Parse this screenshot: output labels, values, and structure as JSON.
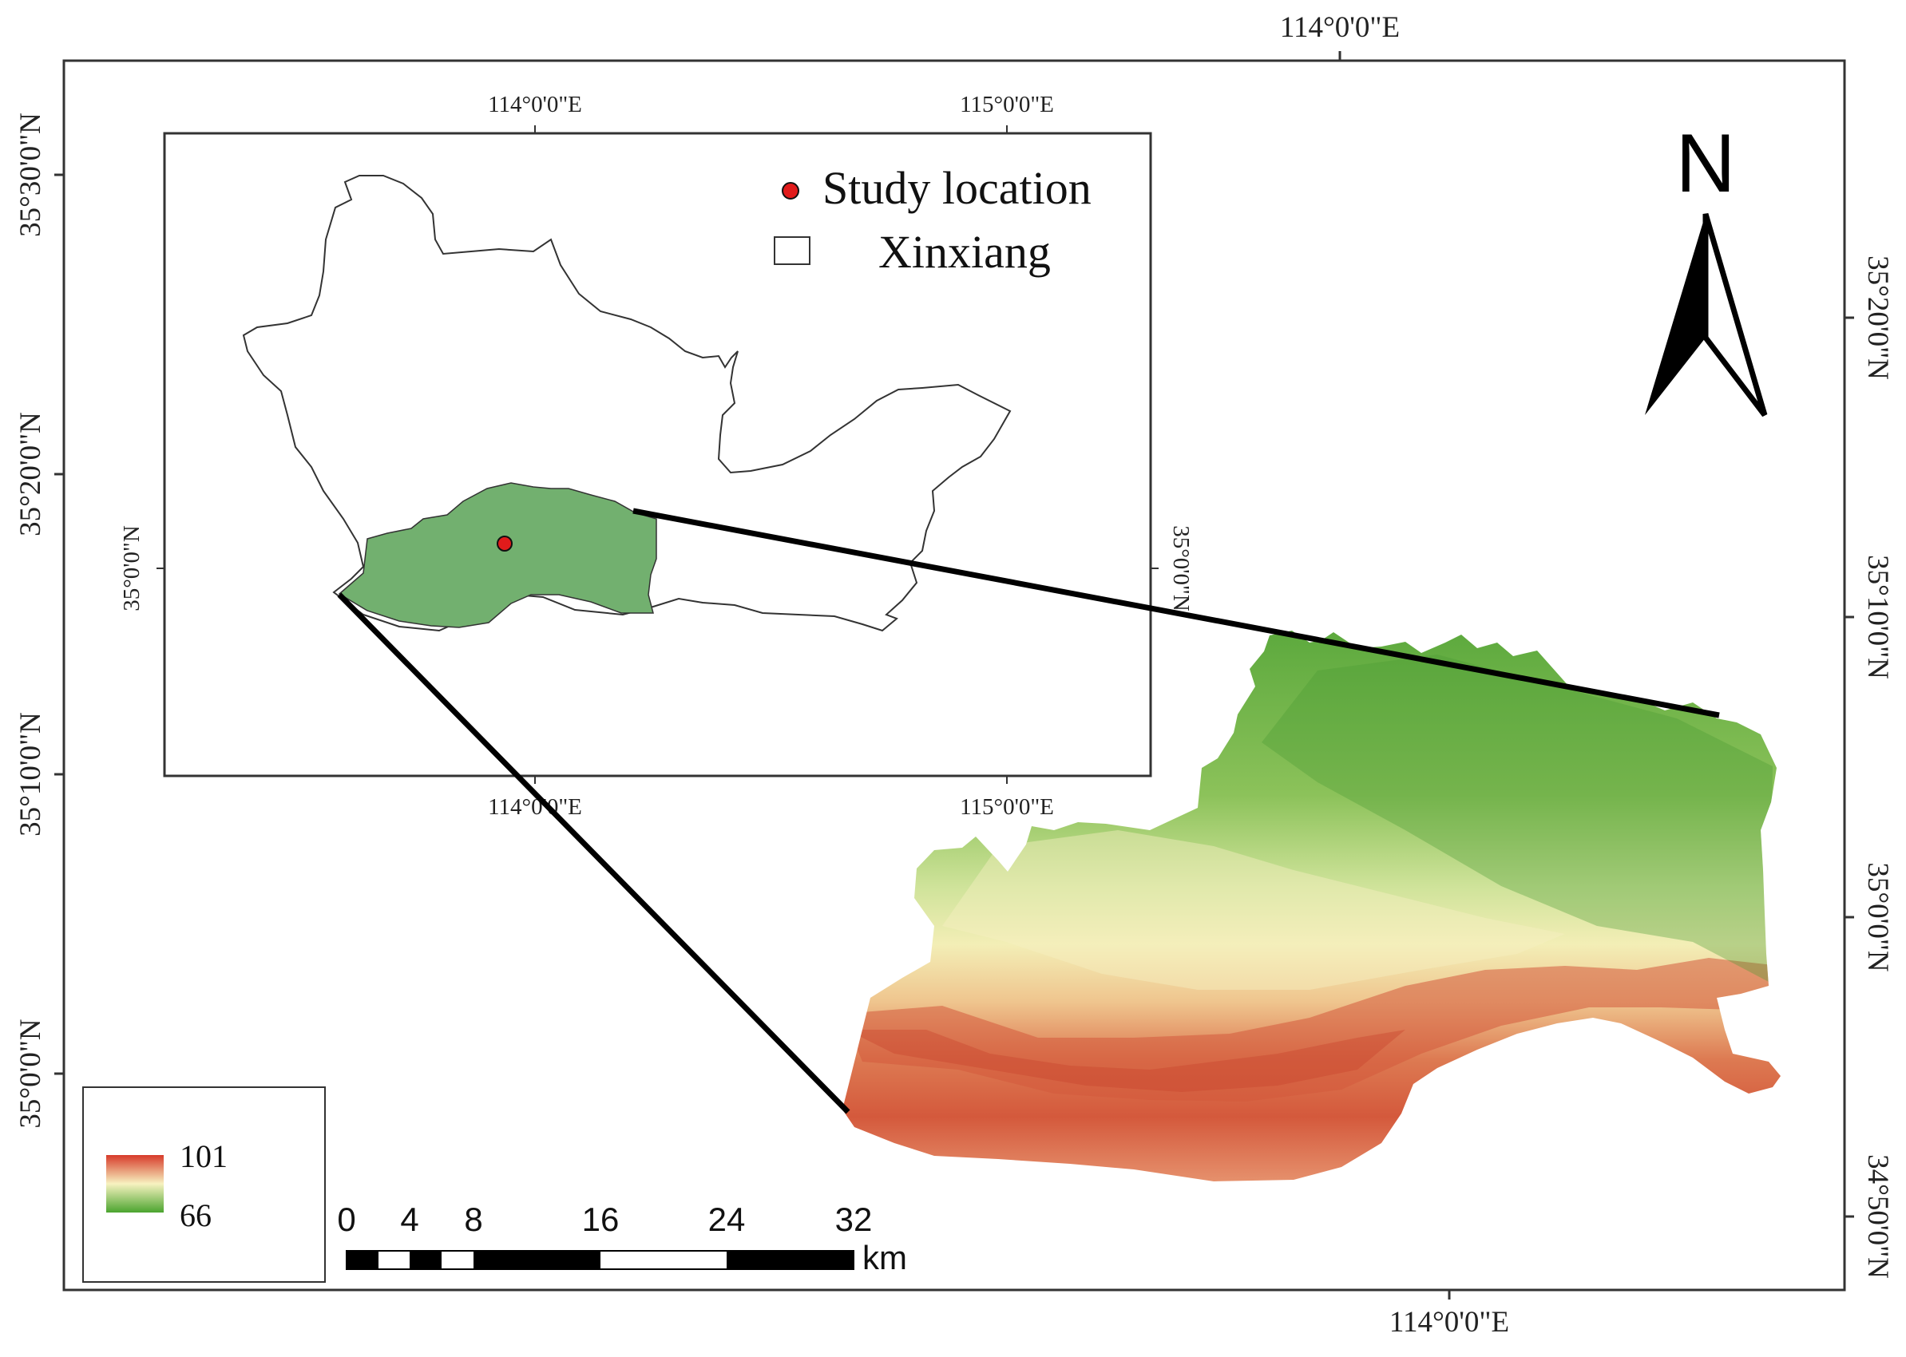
{
  "main_map": {
    "top_lon_label": "114°0'0\"E",
    "bottom_lon_label": "114°0'0\"E",
    "left_lat_labels": [
      "35°30'0\"N",
      "35°20'0\"N",
      "35°10'0\"N",
      "35°0'0\"N"
    ],
    "right_lat_labels": [
      "35°20'0\"N",
      "35°10'0\"N",
      "35°0'0\"N",
      "34°50'0\"N"
    ]
  },
  "inset_map": {
    "top_lon_labels": [
      "114°0'0\"E",
      "115°0'0\"E"
    ],
    "bottom_lon_labels": [
      "114°0'0\"E",
      "115°0'0\"E"
    ],
    "left_lat_label": "35°0'0\"N",
    "right_lat_label": "35°0'0\"N",
    "legend": {
      "study_location": "Study location",
      "xinxiang": "Xinxiang"
    },
    "colors": {
      "study_area_fill": "#72b06f",
      "study_point": "#e11b1b"
    }
  },
  "north_arrow": {
    "label": "N"
  },
  "value_legend": {
    "max": "101",
    "min": "66",
    "colors": {
      "high": "#d73a2a",
      "mid": "#f7f2c0",
      "low": "#4ba42f"
    }
  },
  "scale_bar": {
    "ticks": [
      "0",
      "4",
      "8",
      "16",
      "24",
      "32"
    ],
    "unit": "km"
  }
}
